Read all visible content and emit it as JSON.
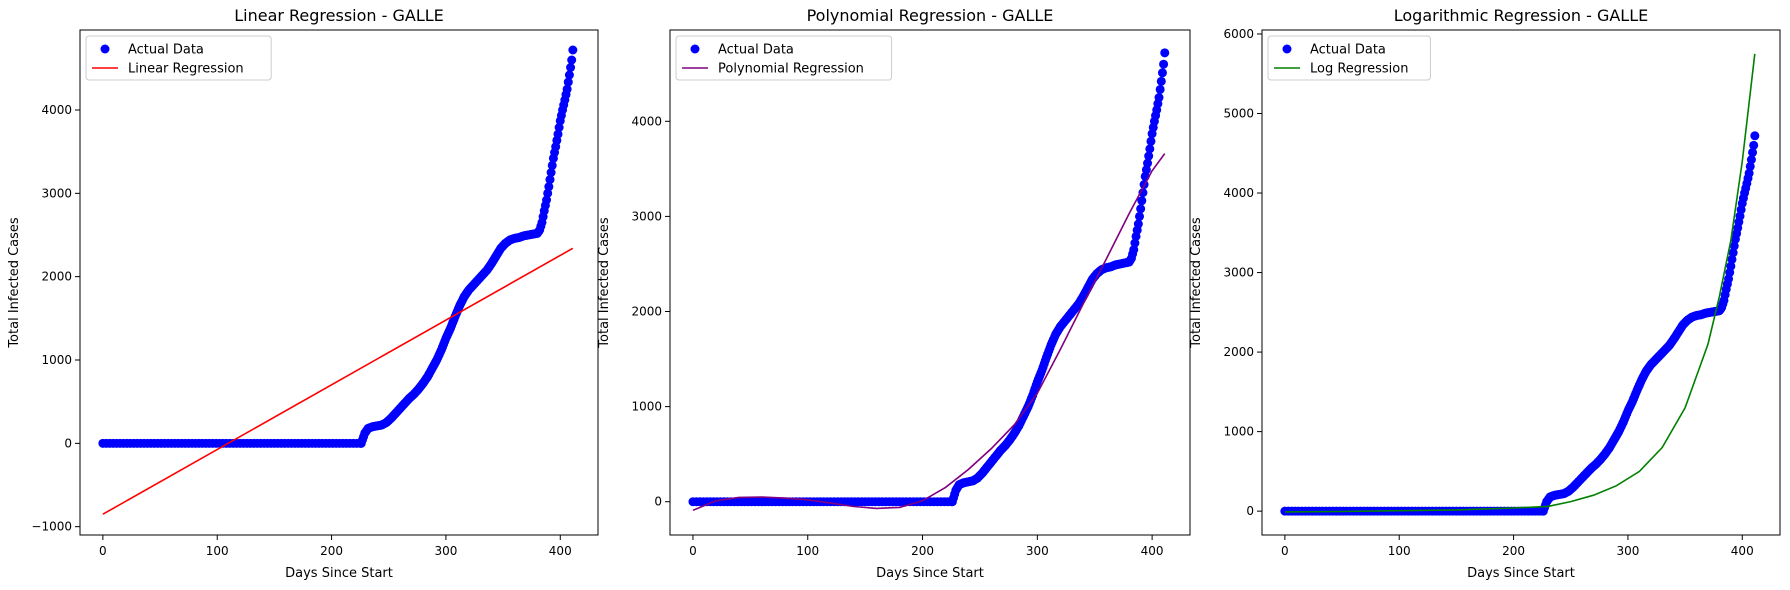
{
  "chart_data": [
    {
      "type": "scatter",
      "title": "Linear Regression - GALLE",
      "xlabel": "Days Since Start",
      "ylabel": "Total Infected Cases",
      "xlim": [
        -20,
        433
      ],
      "ylim": [
        -1100,
        4960
      ],
      "xticks": [
        0,
        100,
        200,
        300,
        400
      ],
      "yticks": [
        -1000,
        0,
        1000,
        2000,
        3000,
        4000
      ],
      "ytick_labels": [
        "−1000",
        "0",
        "1000",
        "2000",
        "3000",
        "4000"
      ],
      "legend_position": "top-left",
      "grid": false,
      "series": [
        {
          "name": "Actual Data",
          "kind": "scatter",
          "color": "#0000ff",
          "points_ref": "actual_ts"
        },
        {
          "name": "Linear Regression",
          "kind": "line",
          "color": "#ff0000",
          "x": [
            0,
            411
          ],
          "y": [
            -850,
            2340
          ]
        }
      ]
    },
    {
      "type": "scatter",
      "title": "Polynomial Regression - GALLE",
      "xlabel": "Days Since Start",
      "ylabel": "Total Infected Cases",
      "xlim": [
        -20,
        433
      ],
      "ylim": [
        -350,
        4960
      ],
      "xticks": [
        0,
        100,
        200,
        300,
        400
      ],
      "yticks": [
        0,
        1000,
        2000,
        3000,
        4000
      ],
      "ytick_labels": [
        "0",
        "1000",
        "2000",
        "3000",
        "4000"
      ],
      "legend_position": "top-left",
      "grid": false,
      "series": [
        {
          "name": "Actual Data",
          "kind": "scatter",
          "color": "#0000ff",
          "points_ref": "actual_ts"
        },
        {
          "name": "Polynomial Regression",
          "kind": "line",
          "color": "#800080",
          "x": [
            0,
            20,
            40,
            60,
            80,
            100,
            120,
            140,
            160,
            180,
            200,
            220,
            240,
            260,
            280,
            300,
            320,
            340,
            360,
            380,
            400,
            411
          ],
          "y": [
            -90,
            10,
            45,
            48,
            38,
            20,
            -15,
            -50,
            -70,
            -60,
            10,
            150,
            340,
            560,
            810,
            1140,
            1600,
            2080,
            2550,
            3030,
            3480,
            3660
          ]
        }
      ]
    },
    {
      "type": "scatter",
      "title": "Logarithmic Regression - GALLE",
      "xlabel": "Days Since Start",
      "ylabel": "Total Infected Cases",
      "xlim": [
        -20,
        433
      ],
      "ylim": [
        -300,
        6050
      ],
      "xticks": [
        0,
        100,
        200,
        300,
        400
      ],
      "yticks": [
        0,
        1000,
        2000,
        3000,
        4000,
        5000,
        6000
      ],
      "ytick_labels": [
        "0",
        "1000",
        "2000",
        "3000",
        "4000",
        "5000",
        "6000"
      ],
      "legend_position": "top-left",
      "grid": false,
      "series": [
        {
          "name": "Actual Data",
          "kind": "scatter",
          "color": "#0000ff",
          "points_ref": "actual_ts"
        },
        {
          "name": "Log Regression",
          "kind": "line",
          "color": "#008000",
          "x": [
            0,
            50,
            100,
            150,
            200,
            230,
            250,
            270,
            290,
            310,
            330,
            350,
            370,
            380,
            390,
            400,
            411
          ],
          "y": [
            -10,
            -5,
            5,
            15,
            40,
            60,
            120,
            200,
            320,
            500,
            800,
            1300,
            2100,
            2700,
            3400,
            4400,
            5750
          ]
        }
      ]
    }
  ],
  "actual_ts": {
    "x": [
      0,
      226,
      229,
      232,
      236,
      240,
      244,
      248,
      252,
      256,
      260,
      264,
      268,
      272,
      276,
      280,
      284,
      288,
      292,
      296,
      300,
      304,
      308,
      312,
      316,
      320,
      324,
      328,
      332,
      336,
      340,
      344,
      348,
      352,
      356,
      360,
      364,
      368,
      372,
      376,
      380,
      382,
      384,
      386,
      388,
      390,
      392,
      394,
      396,
      398,
      400,
      402,
      404,
      406,
      408,
      410,
      411
    ],
    "y": [
      0,
      0,
      120,
      180,
      200,
      210,
      220,
      250,
      300,
      360,
      420,
      480,
      540,
      590,
      650,
      720,
      800,
      900,
      1000,
      1120,
      1260,
      1380,
      1520,
      1650,
      1760,
      1840,
      1900,
      1960,
      2020,
      2080,
      2160,
      2250,
      2340,
      2400,
      2440,
      2460,
      2470,
      2490,
      2500,
      2510,
      2520,
      2560,
      2650,
      2790,
      2920,
      3080,
      3250,
      3420,
      3560,
      3710,
      3870,
      4000,
      4120,
      4250,
      4420,
      4600,
      4720
    ]
  }
}
